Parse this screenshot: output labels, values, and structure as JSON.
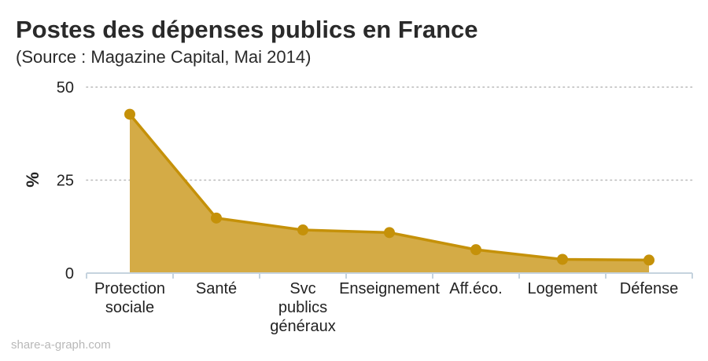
{
  "header": {
    "title": "Postes des dépenses publics en France",
    "subtitle": "(Source : Magazine Capital, Mai 2014)"
  },
  "footer": {
    "credit": "share-a-graph.com"
  },
  "colors": {
    "line": "#c59109",
    "fill": "#d4ab46",
    "grid": "#b8b8b8",
    "axis": "#c5d3de"
  },
  "chart_data": {
    "type": "area",
    "title": "Postes des dépenses publics en France",
    "subtitle": "(Source : Magazine Capital, Mai 2014)",
    "xlabel": "",
    "ylabel": "%",
    "ylim": [
      0,
      50
    ],
    "yticks": [
      0,
      25,
      50
    ],
    "grid": true,
    "markers": true,
    "categories": [
      [
        "Protection",
        "sociale"
      ],
      [
        "Santé"
      ],
      [
        "Svc",
        "publics",
        "généraux"
      ],
      [
        "Enseignement"
      ],
      [
        "Aff.éco."
      ],
      [
        "Logement"
      ],
      [
        "Défense"
      ]
    ],
    "series": [
      {
        "values": [
          42.7,
          14.8,
          11.6,
          10.9,
          6.3,
          3.7,
          3.5
        ]
      }
    ]
  }
}
